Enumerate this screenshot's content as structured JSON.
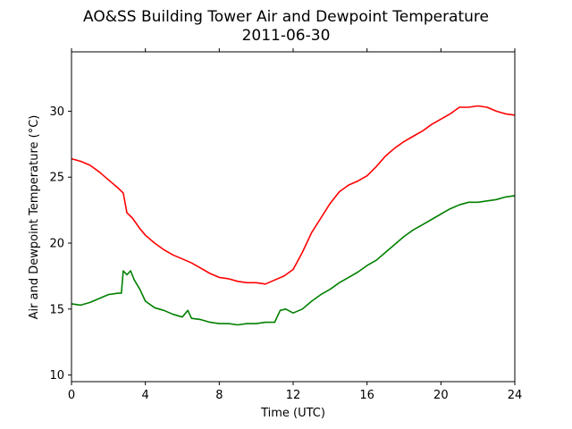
{
  "chart_data": {
    "type": "line",
    "title": "AO&SS Building Tower Air and Dewpoint Temperature",
    "subtitle": "2011-06-30",
    "xlabel": "Time (UTC)",
    "ylabel": "Air and Dewpoint Temperature (°C)",
    "xlim": [
      0,
      24
    ],
    "ylim": [
      9.5,
      34.5
    ],
    "xticks": [
      0,
      4,
      8,
      12,
      16,
      20,
      24
    ],
    "yticks": [
      10,
      15,
      20,
      25,
      30
    ],
    "grid": false,
    "series": [
      {
        "color": "#ff0000",
        "x": [
          0,
          0.5,
          1,
          1.5,
          2,
          2.5,
          2.8,
          3.0,
          3.3,
          3.7,
          4.0,
          4.5,
          5.0,
          5.5,
          6.0,
          6.5,
          7.0,
          7.5,
          8.0,
          8.5,
          9.0,
          9.5,
          10.0,
          10.5,
          11.0,
          11.5,
          12.0,
          12.5,
          13.0,
          13.5,
          14.0,
          14.5,
          15.0,
          15.5,
          16.0,
          16.5,
          17.0,
          17.5,
          18.0,
          18.5,
          19.0,
          19.5,
          20.0,
          20.5,
          21.0,
          21.5,
          22.0,
          22.5,
          23.0,
          23.5,
          24.0
        ],
        "values": [
          26.4,
          26.2,
          25.9,
          25.4,
          24.8,
          24.2,
          23.8,
          22.3,
          21.9,
          21.1,
          20.6,
          20.0,
          19.5,
          19.1,
          18.8,
          18.5,
          18.1,
          17.7,
          17.4,
          17.3,
          17.1,
          17.0,
          17.0,
          16.9,
          17.2,
          17.5,
          18.0,
          19.3,
          20.8,
          21.9,
          23.0,
          23.9,
          24.4,
          24.7,
          25.1,
          25.8,
          26.6,
          27.2,
          27.7,
          28.1,
          28.5,
          29.0,
          29.4,
          29.8,
          30.3,
          30.3,
          30.4,
          30.3,
          30.0,
          29.8,
          29.7
        ]
      },
      {
        "color": "#008000",
        "x": [
          0,
          0.5,
          1,
          1.5,
          2,
          2.5,
          2.7,
          2.8,
          3.0,
          3.2,
          3.4,
          3.7,
          4.0,
          4.5,
          5.0,
          5.5,
          6.0,
          6.3,
          6.5,
          7.0,
          7.5,
          8.0,
          8.5,
          9.0,
          9.5,
          10.0,
          10.5,
          11.0,
          11.3,
          11.6,
          12.0,
          12.5,
          13.0,
          13.5,
          14.0,
          14.5,
          15.0,
          15.5,
          16.0,
          16.5,
          17.0,
          17.5,
          18.0,
          18.5,
          19.0,
          19.5,
          20.0,
          20.5,
          21.0,
          21.5,
          22.0,
          22.5,
          23.0,
          23.5,
          24.0
        ],
        "values": [
          15.4,
          15.3,
          15.5,
          15.8,
          16.1,
          16.2,
          16.2,
          17.9,
          17.6,
          17.9,
          17.2,
          16.5,
          15.6,
          15.1,
          14.9,
          14.6,
          14.4,
          14.9,
          14.3,
          14.2,
          14.0,
          13.9,
          13.9,
          13.8,
          13.9,
          13.9,
          14.0,
          14.0,
          14.9,
          15.0,
          14.7,
          15.0,
          15.6,
          16.1,
          16.5,
          17.0,
          17.4,
          17.8,
          18.3,
          18.7,
          19.3,
          19.9,
          20.5,
          21.0,
          21.4,
          21.8,
          22.2,
          22.6,
          22.9,
          23.1,
          23.1,
          23.2,
          23.3,
          23.5,
          23.6
        ]
      }
    ]
  }
}
